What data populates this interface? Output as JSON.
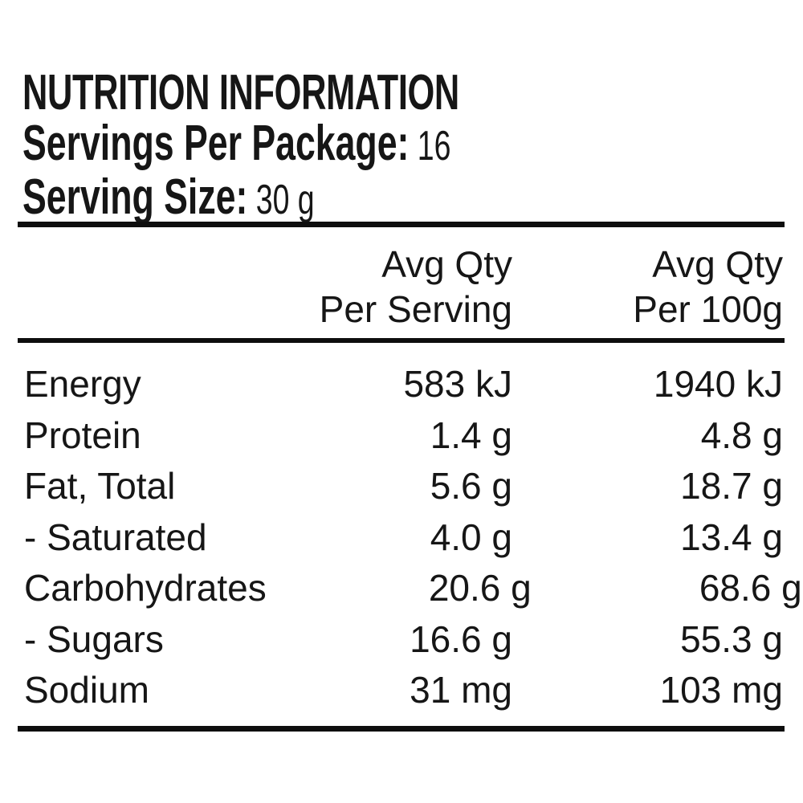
{
  "title": "NUTRITION INFORMATION",
  "package_info": {
    "servings_label": "Servings Per Package:",
    "servings_value": "16",
    "serving_size_label": "Serving Size:",
    "serving_size_value": "30 g"
  },
  "table": {
    "columns": [
      {
        "line1": "Avg Qty",
        "line2": "Per Serving"
      },
      {
        "line1": "Avg Qty",
        "line2": "Per 100g"
      }
    ],
    "rows": [
      {
        "label": "Energy",
        "per_serving": "583 kJ",
        "per_100g": "1940 kJ"
      },
      {
        "label": "Protein",
        "per_serving": "1.4 g",
        "per_100g": "4.8 g"
      },
      {
        "label": "Fat, Total",
        "per_serving": "5.6 g",
        "per_100g": "18.7 g"
      },
      {
        "label": "- Saturated",
        "per_serving": "4.0 g",
        "per_100g": "13.4 g"
      },
      {
        "label": "Carbohydrates",
        "per_serving": "20.6 g",
        "per_100g": "68.6 g"
      },
      {
        "label": "- Sugars",
        "per_serving": "16.6 g",
        "per_100g": "55.3 g"
      },
      {
        "label": "Sodium",
        "per_serving": "31 mg",
        "per_100g": "103 mg"
      }
    ]
  },
  "colors": {
    "background": "#ffffff",
    "text": "#161616",
    "rule": "#0e0e0e"
  }
}
